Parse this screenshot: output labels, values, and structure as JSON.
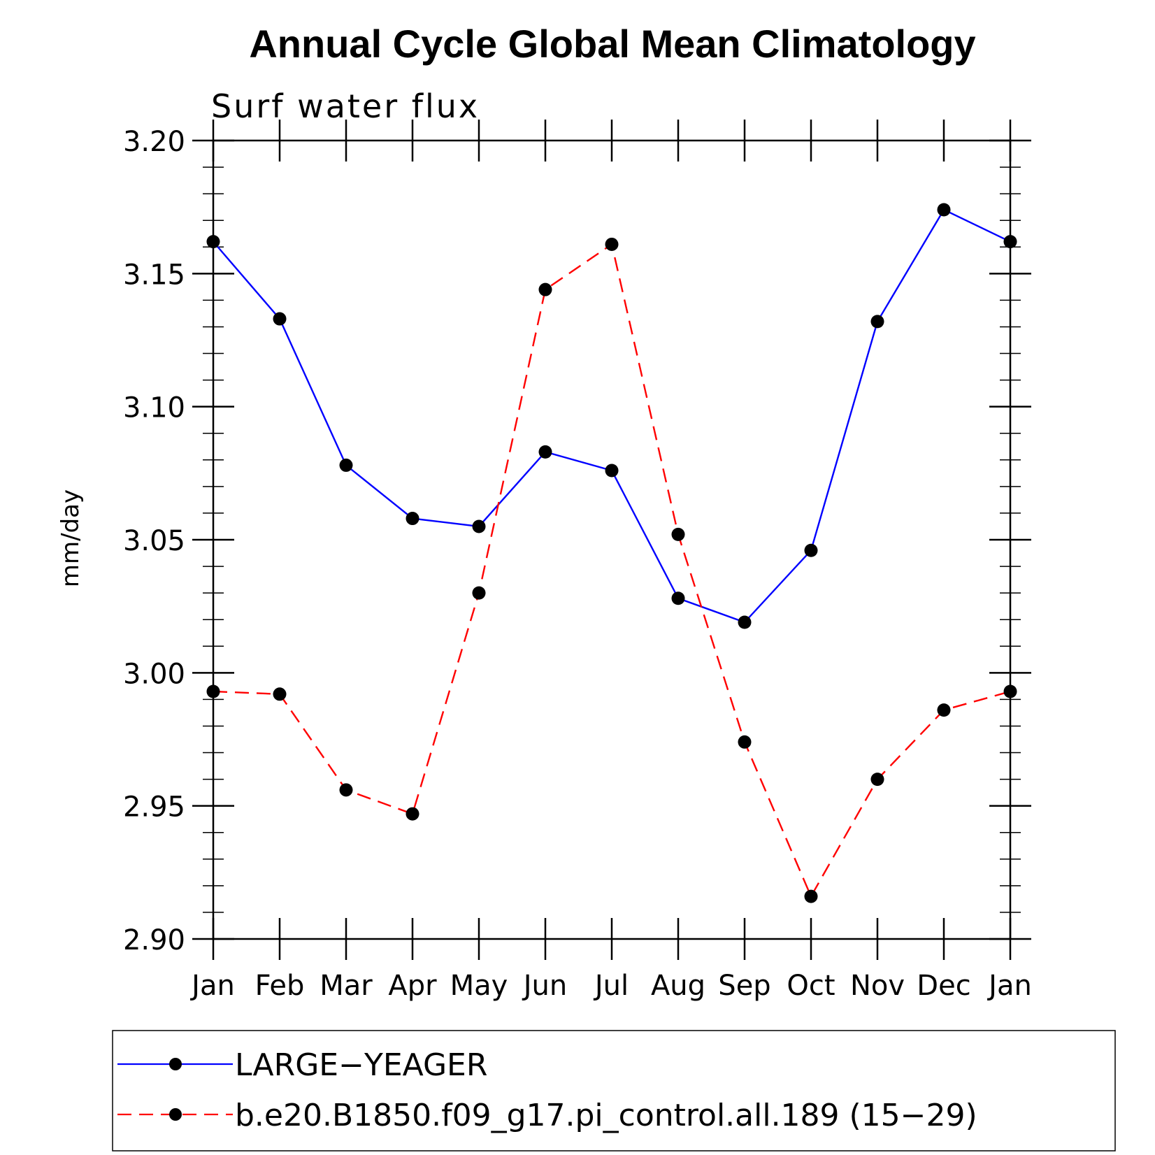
{
  "chart_data": {
    "type": "line",
    "title": "Annual Cycle Global Mean Climatology",
    "subtitle": "Surf water flux",
    "ylabel": "mm/day",
    "xlabel": "",
    "ylim": [
      2.9,
      3.2
    ],
    "yticks": [
      "2.90",
      "2.95",
      "3.00",
      "3.05",
      "3.10",
      "3.15",
      "3.20"
    ],
    "ytick_values": [
      2.9,
      2.95,
      3.0,
      3.05,
      3.1,
      3.15,
      3.2
    ],
    "categories": [
      "Jan",
      "Feb",
      "Mar",
      "Apr",
      "May",
      "Jun",
      "Jul",
      "Aug",
      "Sep",
      "Oct",
      "Nov",
      "Dec",
      "Jan"
    ],
    "series": [
      {
        "name": "LARGE−YEAGER",
        "color": "#0000ff",
        "dash": "solid",
        "values": [
          3.162,
          3.133,
          3.078,
          3.058,
          3.055,
          3.083,
          3.076,
          3.028,
          3.019,
          3.046,
          3.132,
          3.174,
          3.162
        ]
      },
      {
        "name": "b.e20.B1850.f09_g17.pi_control.all.189 (15−29)",
        "color": "#ff0000",
        "dash": "dashed",
        "values": [
          2.993,
          2.992,
          2.956,
          2.947,
          3.03,
          3.144,
          3.161,
          3.052,
          2.974,
          2.916,
          2.96,
          2.986,
          2.993
        ]
      }
    ],
    "legend_position": "bottom"
  }
}
